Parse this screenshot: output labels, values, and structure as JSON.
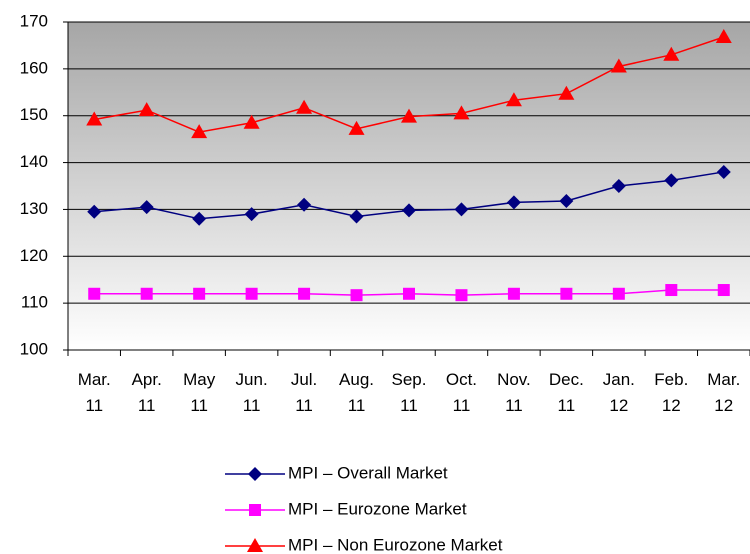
{
  "chart_data": {
    "type": "line",
    "categories": [
      "Mar. 11",
      "Apr. 11",
      "May 11",
      "Jun. 11",
      "Jul. 11",
      "Aug. 11",
      "Sep. 11",
      "Oct. 11",
      "Nov. 11",
      "Dec. 11",
      "Jan. 12",
      "Feb. 12",
      "Mar. 12"
    ],
    "series": [
      {
        "name": "MPI – Overall Market",
        "color": "#000080",
        "marker": "diamond",
        "values": [
          129.5,
          130.5,
          128,
          129,
          131,
          128.5,
          129.8,
          130,
          131.5,
          131.8,
          135,
          136.2,
          138
        ]
      },
      {
        "name": "MPI – Eurozone Market",
        "color": "#ff00ff",
        "marker": "square",
        "values": [
          112,
          112,
          112,
          112,
          112,
          111.7,
          112,
          111.7,
          112,
          112,
          112,
          112.8,
          112.8
        ]
      },
      {
        "name": "MPI – Non Eurozone Market",
        "color": "#ff0000",
        "marker": "triangle",
        "values": [
          149.2,
          151.2,
          146.5,
          148.5,
          151.7,
          147.2,
          149.8,
          150.5,
          153.3,
          154.7,
          160.5,
          163,
          166.8
        ]
      }
    ],
    "ylim": [
      100,
      170
    ],
    "yticks": [
      100,
      110,
      120,
      130,
      140,
      150,
      160,
      170
    ],
    "grid": true
  }
}
